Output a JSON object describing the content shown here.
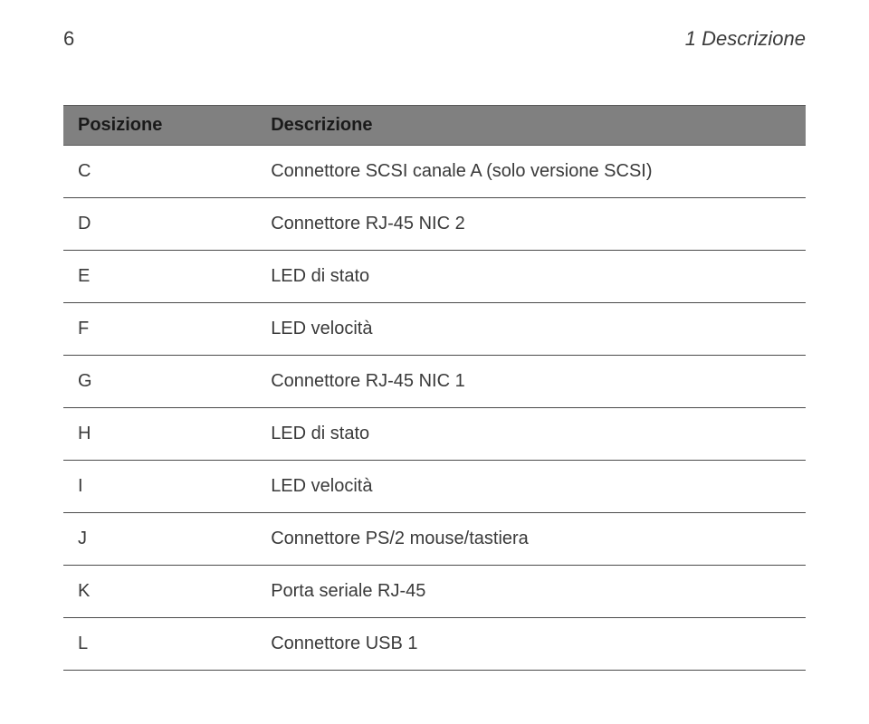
{
  "header": {
    "page_number": "6",
    "section_title": "1 Descrizione"
  },
  "table": {
    "columns": [
      "Posizione",
      "Descrizione"
    ],
    "col_widths": [
      "26%",
      "74%"
    ],
    "rows": [
      {
        "pos": "C",
        "desc": "Connettore SCSI canale A (solo versione SCSI)"
      },
      {
        "pos": "D",
        "desc": "Connettore RJ-45 NIC 2"
      },
      {
        "pos": "E",
        "desc": "LED di stato"
      },
      {
        "pos": "F",
        "desc": "LED velocità"
      },
      {
        "pos": "G",
        "desc": "Connettore RJ-45 NIC 1"
      },
      {
        "pos": "H",
        "desc": "LED di stato"
      },
      {
        "pos": "I",
        "desc": "LED velocità"
      },
      {
        "pos": "J",
        "desc": "Connettore PS/2 mouse/tastiera"
      },
      {
        "pos": "K",
        "desc": "Porta seriale RJ-45"
      },
      {
        "pos": "L",
        "desc": "Connettore USB 1"
      }
    ],
    "header_bg": "#808080",
    "header_text_color": "#1a1a1a",
    "body_text_color": "#3a3a3a",
    "row_border_color": "#4a4a4a",
    "font_size": 20
  }
}
